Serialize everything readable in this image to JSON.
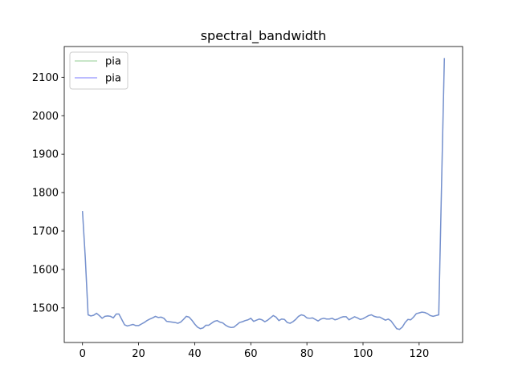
{
  "chart_data": {
    "type": "line",
    "title": "spectral_bandwidth",
    "xlabel": "",
    "ylabel": "",
    "xlim": [
      -6.5,
      135.5
    ],
    "ylim": [
      1410,
      2180
    ],
    "xticks": [
      0,
      20,
      40,
      60,
      80,
      100,
      120
    ],
    "yticks": [
      1500,
      1600,
      1700,
      1800,
      1900,
      2000,
      2100
    ],
    "grid": false,
    "legend_position": "top-left",
    "series": [
      {
        "name": "pia",
        "color": "#2ca02c",
        "opacity": 0.35,
        "values": [
          1752,
          1630,
          1482,
          1479,
          1481,
          1486,
          1480,
          1473,
          1478,
          1479,
          1478,
          1474,
          1484,
          1484,
          1470,
          1456,
          1453,
          1455,
          1457,
          1454,
          1454,
          1458,
          1462,
          1467,
          1471,
          1474,
          1478,
          1475,
          1476,
          1473,
          1465,
          1464,
          1463,
          1462,
          1460,
          1463,
          1470,
          1478,
          1476,
          1468,
          1458,
          1450,
          1446,
          1448,
          1455,
          1455,
          1460,
          1465,
          1467,
          1463,
          1461,
          1455,
          1451,
          1449,
          1450,
          1456,
          1462,
          1464,
          1467,
          1469,
          1473,
          1465,
          1468,
          1471,
          1469,
          1464,
          1468,
          1474,
          1480,
          1476,
          1467,
          1471,
          1470,
          1462,
          1460,
          1464,
          1470,
          1478,
          1482,
          1480,
          1474,
          1473,
          1474,
          1470,
          1466,
          1471,
          1473,
          1471,
          1471,
          1473,
          1469,
          1471,
          1475,
          1477,
          1477,
          1469,
          1473,
          1477,
          1474,
          1470,
          1472,
          1476,
          1480,
          1482,
          1478,
          1476,
          1476,
          1472,
          1468,
          1471,
          1466,
          1456,
          1446,
          1444,
          1450,
          1462,
          1470,
          1469,
          1476,
          1485,
          1487,
          1489,
          1488,
          1485,
          1480,
          1478,
          1480,
          1482,
          1820,
          2150
        ]
      },
      {
        "name": "pia",
        "color": "#0000ff",
        "opacity": 0.35,
        "values": [
          1752,
          1630,
          1482,
          1479,
          1481,
          1486,
          1480,
          1473,
          1478,
          1479,
          1478,
          1474,
          1484,
          1484,
          1470,
          1456,
          1453,
          1455,
          1457,
          1454,
          1454,
          1458,
          1462,
          1467,
          1471,
          1474,
          1478,
          1475,
          1476,
          1473,
          1465,
          1464,
          1463,
          1462,
          1460,
          1463,
          1470,
          1478,
          1476,
          1468,
          1458,
          1450,
          1446,
          1448,
          1455,
          1455,
          1460,
          1465,
          1467,
          1463,
          1461,
          1455,
          1451,
          1449,
          1450,
          1456,
          1462,
          1464,
          1467,
          1469,
          1473,
          1465,
          1468,
          1471,
          1469,
          1464,
          1468,
          1474,
          1480,
          1476,
          1467,
          1471,
          1470,
          1462,
          1460,
          1464,
          1470,
          1478,
          1482,
          1480,
          1474,
          1473,
          1474,
          1470,
          1466,
          1471,
          1473,
          1471,
          1471,
          1473,
          1469,
          1471,
          1475,
          1477,
          1477,
          1469,
          1473,
          1477,
          1474,
          1470,
          1472,
          1476,
          1480,
          1482,
          1478,
          1476,
          1476,
          1472,
          1468,
          1471,
          1466,
          1456,
          1446,
          1444,
          1450,
          1462,
          1470,
          1469,
          1476,
          1485,
          1487,
          1489,
          1488,
          1485,
          1480,
          1478,
          1480,
          1482,
          1820,
          2150
        ]
      }
    ]
  }
}
